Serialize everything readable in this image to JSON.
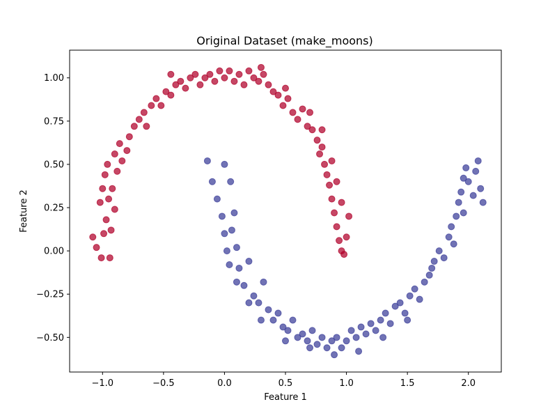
{
  "chart_data": {
    "type": "scatter",
    "title": "Original Dataset (make_moons)",
    "xlabel": "Feature 1",
    "ylabel": "Feature 2",
    "xlim": [
      -1.27,
      2.27
    ],
    "ylim": [
      -0.7,
      1.16
    ],
    "xticks": [
      -1.0,
      -0.5,
      0.0,
      0.5,
      1.0,
      1.5,
      2.0
    ],
    "xtick_labels": [
      "−1.0",
      "−0.5",
      "0.0",
      "0.5",
      "1.0",
      "1.5",
      "2.0"
    ],
    "yticks": [
      -0.5,
      -0.25,
      0.0,
      0.25,
      0.5,
      0.75,
      1.0
    ],
    "ytick_labels": [
      "−0.50",
      "−0.25",
      "0.00",
      "0.25",
      "0.50",
      "0.75",
      "1.00"
    ],
    "grid": false,
    "legend": "none",
    "series": [
      {
        "color": "#b0002a",
        "opacity": 0.72,
        "points": [
          [
            -1.08,
            0.08
          ],
          [
            -1.05,
            0.02
          ],
          [
            -1.02,
            0.28
          ],
          [
            -1.0,
            0.36
          ],
          [
            -0.98,
            0.44
          ],
          [
            -0.96,
            0.5
          ],
          [
            -0.95,
            0.3
          ],
          [
            -0.97,
            0.18
          ],
          [
            -1.01,
            -0.04
          ],
          [
            -0.94,
            -0.04
          ],
          [
            -0.99,
            0.1
          ],
          [
            -0.93,
            0.12
          ],
          [
            -0.9,
            0.24
          ],
          [
            -0.92,
            0.36
          ],
          [
            -0.88,
            0.46
          ],
          [
            -0.9,
            0.56
          ],
          [
            -0.86,
            0.62
          ],
          [
            -0.84,
            0.52
          ],
          [
            -0.8,
            0.58
          ],
          [
            -0.78,
            0.66
          ],
          [
            -0.74,
            0.72
          ],
          [
            -0.7,
            0.76
          ],
          [
            -0.66,
            0.8
          ],
          [
            -0.64,
            0.72
          ],
          [
            -0.6,
            0.84
          ],
          [
            -0.56,
            0.88
          ],
          [
            -0.52,
            0.84
          ],
          [
            -0.48,
            0.92
          ],
          [
            -0.44,
            0.9
          ],
          [
            -0.4,
            0.96
          ],
          [
            -0.36,
            0.98
          ],
          [
            -0.32,
            0.94
          ],
          [
            -0.28,
            1.0
          ],
          [
            -0.24,
            1.02
          ],
          [
            -0.2,
            0.96
          ],
          [
            -0.16,
            1.0
          ],
          [
            -0.12,
            1.02
          ],
          [
            -0.08,
            0.98
          ],
          [
            -0.04,
            1.04
          ],
          [
            0.0,
            1.0
          ],
          [
            0.04,
            1.04
          ],
          [
            0.08,
            0.98
          ],
          [
            0.12,
            1.02
          ],
          [
            0.16,
            0.96
          ],
          [
            0.2,
            1.04
          ],
          [
            0.24,
            1.0
          ],
          [
            0.28,
            0.98
          ],
          [
            0.32,
            1.02
          ],
          [
            0.36,
            0.96
          ],
          [
            0.4,
            0.92
          ],
          [
            0.44,
            0.9
          ],
          [
            0.48,
            0.84
          ],
          [
            0.52,
            0.88
          ],
          [
            0.56,
            0.8
          ],
          [
            0.6,
            0.76
          ],
          [
            0.64,
            0.82
          ],
          [
            0.68,
            0.72
          ],
          [
            0.72,
            0.7
          ],
          [
            0.76,
            0.64
          ],
          [
            0.78,
            0.56
          ],
          [
            0.8,
            0.6
          ],
          [
            0.82,
            0.5
          ],
          [
            0.84,
            0.44
          ],
          [
            0.86,
            0.38
          ],
          [
            0.88,
            0.3
          ],
          [
            0.9,
            0.22
          ],
          [
            0.92,
            0.14
          ],
          [
            0.94,
            0.06
          ],
          [
            0.96,
            0.0
          ],
          [
            0.98,
            -0.02
          ],
          [
            1.0,
            0.08
          ],
          [
            1.02,
            0.2
          ],
          [
            0.96,
            0.28
          ],
          [
            0.92,
            0.4
          ],
          [
            0.88,
            0.52
          ],
          [
            0.8,
            0.7
          ],
          [
            0.7,
            0.8
          ],
          [
            0.5,
            0.94
          ],
          [
            0.3,
            1.06
          ],
          [
            -0.44,
            1.02
          ]
        ]
      },
      {
        "color": "#3a3d98",
        "opacity": 0.72,
        "points": [
          [
            -0.14,
            0.52
          ],
          [
            -0.1,
            0.4
          ],
          [
            -0.06,
            0.3
          ],
          [
            -0.02,
            0.2
          ],
          [
            0.0,
            0.1
          ],
          [
            0.02,
            0.0
          ],
          [
            0.04,
            -0.08
          ],
          [
            0.06,
            0.12
          ],
          [
            0.08,
            0.22
          ],
          [
            0.1,
            0.02
          ],
          [
            0.12,
            -0.1
          ],
          [
            0.16,
            -0.2
          ],
          [
            0.2,
            -0.06
          ],
          [
            0.24,
            -0.26
          ],
          [
            0.28,
            -0.3
          ],
          [
            0.32,
            -0.18
          ],
          [
            0.36,
            -0.34
          ],
          [
            0.4,
            -0.4
          ],
          [
            0.44,
            -0.36
          ],
          [
            0.48,
            -0.44
          ],
          [
            0.52,
            -0.46
          ],
          [
            0.56,
            -0.4
          ],
          [
            0.6,
            -0.5
          ],
          [
            0.64,
            -0.48
          ],
          [
            0.68,
            -0.52
          ],
          [
            0.72,
            -0.46
          ],
          [
            0.76,
            -0.54
          ],
          [
            0.8,
            -0.5
          ],
          [
            0.84,
            -0.56
          ],
          [
            0.88,
            -0.52
          ],
          [
            0.92,
            -0.5
          ],
          [
            0.96,
            -0.56
          ],
          [
            1.0,
            -0.52
          ],
          [
            1.04,
            -0.46
          ],
          [
            1.08,
            -0.5
          ],
          [
            1.12,
            -0.44
          ],
          [
            1.16,
            -0.48
          ],
          [
            1.2,
            -0.42
          ],
          [
            1.24,
            -0.46
          ],
          [
            1.28,
            -0.4
          ],
          [
            1.32,
            -0.36
          ],
          [
            1.36,
            -0.42
          ],
          [
            1.4,
            -0.32
          ],
          [
            1.44,
            -0.3
          ],
          [
            1.48,
            -0.36
          ],
          [
            1.52,
            -0.26
          ],
          [
            1.56,
            -0.22
          ],
          [
            1.6,
            -0.28
          ],
          [
            1.64,
            -0.18
          ],
          [
            1.68,
            -0.14
          ],
          [
            1.72,
            -0.06
          ],
          [
            1.76,
            0.0
          ],
          [
            1.8,
            -0.04
          ],
          [
            1.84,
            0.08
          ],
          [
            1.86,
            0.14
          ],
          [
            1.9,
            0.2
          ],
          [
            1.92,
            0.28
          ],
          [
            1.94,
            0.34
          ],
          [
            1.96,
            0.42
          ],
          [
            1.98,
            0.48
          ],
          [
            2.0,
            0.4
          ],
          [
            2.04,
            0.32
          ],
          [
            2.06,
            0.46
          ],
          [
            2.08,
            0.52
          ],
          [
            2.1,
            0.36
          ],
          [
            2.12,
            0.28
          ],
          [
            1.96,
            0.22
          ],
          [
            1.88,
            0.04
          ],
          [
            1.7,
            -0.1
          ],
          [
            1.5,
            -0.4
          ],
          [
            1.3,
            -0.5
          ],
          [
            1.1,
            -0.58
          ],
          [
            0.9,
            -0.6
          ],
          [
            0.7,
            -0.56
          ],
          [
            0.5,
            -0.52
          ],
          [
            0.3,
            -0.4
          ],
          [
            0.2,
            -0.3
          ],
          [
            0.1,
            -0.18
          ],
          [
            0.05,
            0.4
          ],
          [
            0.0,
            0.5
          ]
        ]
      }
    ]
  }
}
